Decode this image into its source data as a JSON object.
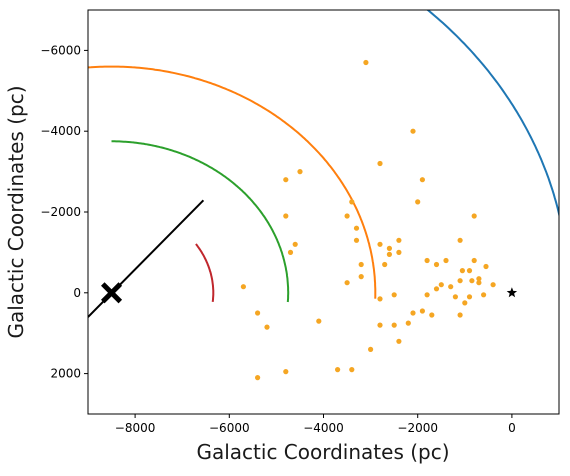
{
  "chart_data": {
    "type": "scatter",
    "title": "",
    "xlabel": "Galactic Coordinates (pc)",
    "ylabel": "Galactic Coordinates (pc)",
    "xlim": [
      -9000,
      1000
    ],
    "ylim": [
      3000,
      -7000
    ],
    "x_ticks": [
      -8000,
      -6000,
      -4000,
      -2000,
      0
    ],
    "y_ticks": [
      -6000,
      -4000,
      -2000,
      0,
      2000
    ],
    "x_tick_labels": [
      "−8000",
      "−6000",
      "−4000",
      "−2000",
      "0"
    ],
    "y_tick_labels": [
      "−6000",
      "−4000",
      "−2000",
      "0",
      "2000"
    ],
    "grid": false,
    "colors": {
      "scatter": "#f5a623",
      "blue": "#1f77b4",
      "orange": "#ff7f0e",
      "green": "#2ca02c",
      "red": "#c0272d",
      "black": "#000000"
    },
    "galactic_center": [
      -8500,
      0
    ],
    "sun": [
      0,
      0
    ],
    "rings": [
      {
        "color": "blue",
        "radius": 9700,
        "theta_min": -50,
        "theta_max": 6
      },
      {
        "color": "blue",
        "radius": 2700,
        "theta_min": 130,
        "theta_max": 160
      },
      {
        "color": "orange",
        "radius": 5600,
        "theta_min": -100,
        "theta_max": 1.7
      },
      {
        "color": "green",
        "radius": 3750,
        "theta_min": -90,
        "theta_max": 3.6
      },
      {
        "color": "red",
        "radius": 2160,
        "theta_min": -34,
        "theta_max": 6.1
      }
    ],
    "black_line": [
      [
        -9000,
        600
      ],
      [
        -6550,
        -2290
      ]
    ],
    "scatter_points": [
      [
        -3100,
        -5700
      ],
      [
        -2100,
        -4000
      ],
      [
        -4500,
        -3000
      ],
      [
        -4800,
        -2800
      ],
      [
        -2800,
        -3200
      ],
      [
        -1900,
        -2800
      ],
      [
        -2000,
        -2250
      ],
      [
        -800,
        -1900
      ],
      [
        -3400,
        -2250
      ],
      [
        -4800,
        -1900
      ],
      [
        -3500,
        -1900
      ],
      [
        -3300,
        -1600
      ],
      [
        -4600,
        -1200
      ],
      [
        -4700,
        -1000
      ],
      [
        -3300,
        -1300
      ],
      [
        -2800,
        -1200
      ],
      [
        -2600,
        -1100
      ],
      [
        -2400,
        -1300
      ],
      [
        -2600,
        -950
      ],
      [
        -2400,
        -1000
      ],
      [
        -1100,
        -1300
      ],
      [
        -2700,
        -700
      ],
      [
        -3200,
        -700
      ],
      [
        -1600,
        -700
      ],
      [
        -1800,
        -800
      ],
      [
        -3200,
        -400
      ],
      [
        -1400,
        -800
      ],
      [
        -1050,
        -550
      ],
      [
        -900,
        -550
      ],
      [
        -800,
        -800
      ],
      [
        -700,
        -350
      ],
      [
        -550,
        -650
      ],
      [
        -3500,
        -250
      ],
      [
        -1100,
        -300
      ],
      [
        -850,
        -300
      ],
      [
        -700,
        -250
      ],
      [
        -400,
        -200
      ],
      [
        -1600,
        -100
      ],
      [
        -1500,
        -200
      ],
      [
        -1300,
        -150
      ],
      [
        -1200,
        100
      ],
      [
        -2800,
        150
      ],
      [
        -2500,
        50
      ],
      [
        -1800,
        50
      ],
      [
        -900,
        100
      ],
      [
        -600,
        50
      ],
      [
        -5700,
        -150
      ],
      [
        -1000,
        250
      ],
      [
        -1900,
        450
      ],
      [
        -2100,
        500
      ],
      [
        -1700,
        550
      ],
      [
        -2200,
        750
      ],
      [
        -1100,
        550
      ],
      [
        -2800,
        800
      ],
      [
        -2500,
        800
      ],
      [
        -5400,
        500
      ],
      [
        -4100,
        700
      ],
      [
        -5200,
        850
      ],
      [
        -2400,
        1200
      ],
      [
        -3000,
        1400
      ],
      [
        -3700,
        1900
      ],
      [
        -3400,
        1900
      ],
      [
        -4800,
        1950
      ],
      [
        -5400,
        2100
      ]
    ]
  }
}
